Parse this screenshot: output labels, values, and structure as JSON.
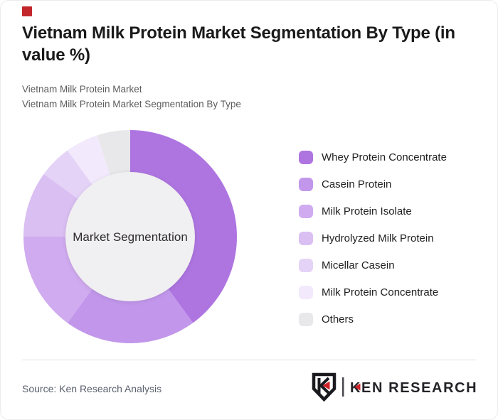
{
  "header": {
    "title": "Vietnam Milk Protein Market Segmentation By Type (in value %)",
    "subtitle_line1": "Vietnam Milk Protein Market",
    "subtitle_line2": "Vietnam Milk Protein Market Segmentation By Type"
  },
  "chart_data": {
    "type": "pie",
    "title": "Vietnam Milk Protein Market Segmentation By Type (in value %)",
    "donut": true,
    "center_label": "Market Segmentation",
    "start_angle_deg": 0,
    "direction": "clockwise",
    "inner_radius_ratio": 0.606,
    "inner_circle_color": "#F0EFF1",
    "legend_position": "right",
    "data_labels_shown": false,
    "segments": [
      {
        "label": "Whey Protein Concentrate",
        "value_pct": 40,
        "color": "#AE75E1"
      },
      {
        "label": "Casein Protein",
        "value_pct": 20,
        "color": "#C297EB"
      },
      {
        "label": "Milk Protein Isolate",
        "value_pct": 15,
        "color": "#D0ABEF"
      },
      {
        "label": "Hydrolyzed Milk Protein",
        "value_pct": 10,
        "color": "#DABFF3"
      },
      {
        "label": "Micellar Casein",
        "value_pct": 5,
        "color": "#E5D3F7"
      },
      {
        "label": "Milk Protein Concentrate",
        "value_pct": 5,
        "color": "#F2E9FC"
      },
      {
        "label": "Others",
        "value_pct": 5,
        "color": "#E8E7EA"
      }
    ]
  },
  "footer": {
    "source": "Source: Ken Research Analysis",
    "logo_text": "KEN RESEARCH"
  },
  "accents": {
    "red_marker_color": "#C3272B",
    "logo_red": "#CE2127",
    "logo_dark": "#1b1a1f"
  }
}
